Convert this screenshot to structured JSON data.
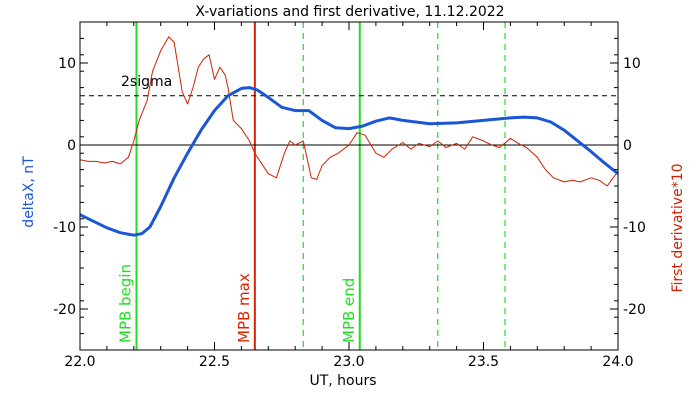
{
  "chart_data": {
    "type": "line",
    "title": "X-variations and first derivative, 11.12.2022",
    "xlabel": "UT, hours",
    "ylabel_left": "deltaX, nT",
    "ylabel_right": "First derivative*10",
    "xlim": [
      22.0,
      24.0
    ],
    "ylim": [
      -25,
      15
    ],
    "xticks": [
      22.0,
      22.5,
      23.0,
      23.5,
      24.0
    ],
    "xtick_labels": [
      "22.0",
      "22.5",
      "23.0",
      "23.5",
      "24.0"
    ],
    "yticks": [
      -20,
      -10,
      0,
      10
    ],
    "ytick_labels": [
      "-20",
      "-10",
      "0",
      "10"
    ],
    "series": [
      {
        "name": "deltaX, nT",
        "color": "#1a56d6",
        "x": [
          22.0,
          22.05,
          22.1,
          22.15,
          22.2,
          22.23,
          22.26,
          22.3,
          22.35,
          22.4,
          22.45,
          22.5,
          22.55,
          22.6,
          22.63,
          22.66,
          22.7,
          22.75,
          22.8,
          22.85,
          22.9,
          22.95,
          23.0,
          23.05,
          23.1,
          23.15,
          23.2,
          23.3,
          23.4,
          23.5,
          23.6,
          23.65,
          23.7,
          23.75,
          23.8,
          23.85,
          23.9,
          23.95,
          24.0
        ],
        "values": [
          -8.5,
          -9.3,
          -10.1,
          -10.7,
          -11.0,
          -10.8,
          -10.0,
          -7.5,
          -4.0,
          -1.0,
          1.8,
          4.2,
          6.0,
          6.9,
          7.0,
          6.7,
          5.8,
          4.6,
          4.2,
          4.2,
          3.0,
          2.1,
          2.0,
          2.3,
          2.9,
          3.3,
          3.0,
          2.6,
          2.7,
          3.0,
          3.3,
          3.4,
          3.3,
          2.8,
          1.8,
          0.5,
          -0.8,
          -2.2,
          -3.5
        ]
      },
      {
        "name": "First derivative*10",
        "color": "#cc2200",
        "x": [
          22.0,
          22.03,
          22.06,
          22.09,
          22.12,
          22.15,
          22.18,
          22.2,
          22.22,
          22.25,
          22.27,
          22.3,
          22.33,
          22.35,
          22.37,
          22.38,
          22.4,
          22.42,
          22.44,
          22.46,
          22.48,
          22.5,
          22.52,
          22.54,
          22.55,
          22.57,
          22.6,
          22.63,
          22.65,
          22.67,
          22.7,
          22.73,
          22.76,
          22.78,
          22.8,
          22.83,
          22.86,
          22.88,
          22.9,
          22.93,
          22.96,
          23.0,
          23.03,
          23.06,
          23.1,
          23.13,
          23.16,
          23.2,
          23.23,
          23.26,
          23.3,
          23.33,
          23.36,
          23.4,
          23.43,
          23.46,
          23.5,
          23.53,
          23.56,
          23.6,
          23.63,
          23.66,
          23.7,
          23.73,
          23.76,
          23.8,
          23.83,
          23.86,
          23.9,
          23.93,
          23.96,
          24.0
        ],
        "values": [
          -1.8,
          -2.0,
          -2.0,
          -2.2,
          -2.0,
          -2.3,
          -1.5,
          0.5,
          3.0,
          5.5,
          9.0,
          11.5,
          13.2,
          12.5,
          8.5,
          6.5,
          5.0,
          7.0,
          9.5,
          10.5,
          11.0,
          8.0,
          9.5,
          8.5,
          7.0,
          3.0,
          2.0,
          0.5,
          -1.0,
          -2.0,
          -3.5,
          -4.0,
          -1.0,
          0.5,
          0.0,
          0.5,
          -4.0,
          -4.2,
          -2.5,
          -1.5,
          -1.0,
          0.0,
          1.5,
          1.2,
          -1.0,
          -1.5,
          -0.5,
          0.3,
          -0.5,
          0.2,
          -0.2,
          0.5,
          -0.3,
          0.2,
          -0.5,
          1.0,
          0.5,
          0.0,
          -0.3,
          0.8,
          0.2,
          -0.3,
          -1.5,
          -3.0,
          -4.0,
          -4.5,
          -4.3,
          -4.5,
          -4.0,
          -4.3,
          -5.0,
          -3.2
        ]
      }
    ],
    "reference_lines": [
      {
        "label": "2sigma",
        "value": 6,
        "style": "dashed",
        "color": "#000000"
      },
      {
        "label": "",
        "value": 0,
        "style": "solid",
        "color": "#000000"
      }
    ],
    "vertical_markers": [
      {
        "label": "MPB begin",
        "x": 22.21,
        "color": "#22dd22",
        "style": "solid"
      },
      {
        "label": "MPB max",
        "x": 22.65,
        "color": "#dd2200",
        "style": "solid"
      },
      {
        "label": "",
        "x": 22.83,
        "color": "#22dd22",
        "style": "dashed"
      },
      {
        "label": "MPB end",
        "x": 23.04,
        "color": "#22dd22",
        "style": "solid"
      },
      {
        "label": "",
        "x": 23.33,
        "color": "#22dd22",
        "style": "dashed"
      },
      {
        "label": "",
        "x": 23.58,
        "color": "#22dd22",
        "style": "dashed"
      }
    ],
    "grid": false
  }
}
